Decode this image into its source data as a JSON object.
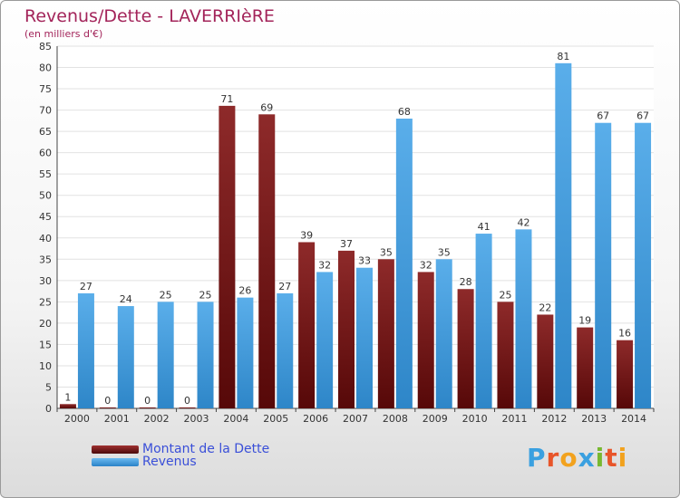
{
  "chart_data": {
    "type": "bar",
    "title": "Revenus/Dette - LAVERRIèRE",
    "subtitle": "(en milliers d'€)",
    "categories": [
      "2000",
      "2001",
      "2002",
      "2003",
      "2004",
      "2005",
      "2006",
      "2007",
      "2008",
      "2009",
      "2010",
      "2011",
      "2012",
      "2013",
      "2014"
    ],
    "series": [
      {
        "name": "Montant de la Dette",
        "values": [
          1,
          0,
          0,
          0,
          71,
          69,
          39,
          37,
          35,
          32,
          28,
          25,
          22,
          19,
          16
        ],
        "color": "#7a1c1c"
      },
      {
        "name": "Revenus",
        "values": [
          27,
          24,
          25,
          25,
          26,
          27,
          32,
          33,
          68,
          35,
          41,
          42,
          81,
          67,
          67
        ],
        "color": "#4aa3e6"
      }
    ],
    "ylim": [
      0,
      85
    ],
    "yticks": [
      0,
      5,
      10,
      15,
      20,
      25,
      30,
      35,
      40,
      45,
      50,
      55,
      60,
      65,
      70,
      75,
      80,
      85
    ],
    "grid": true,
    "legend_position": "bottom-left"
  },
  "logo": {
    "text": "Proxiti",
    "colors": [
      "#3aa0e0",
      "#e8552a",
      "#f2a21e",
      "#3aa0e0",
      "#78b830",
      "#e8552a",
      "#f2a21e"
    ]
  }
}
